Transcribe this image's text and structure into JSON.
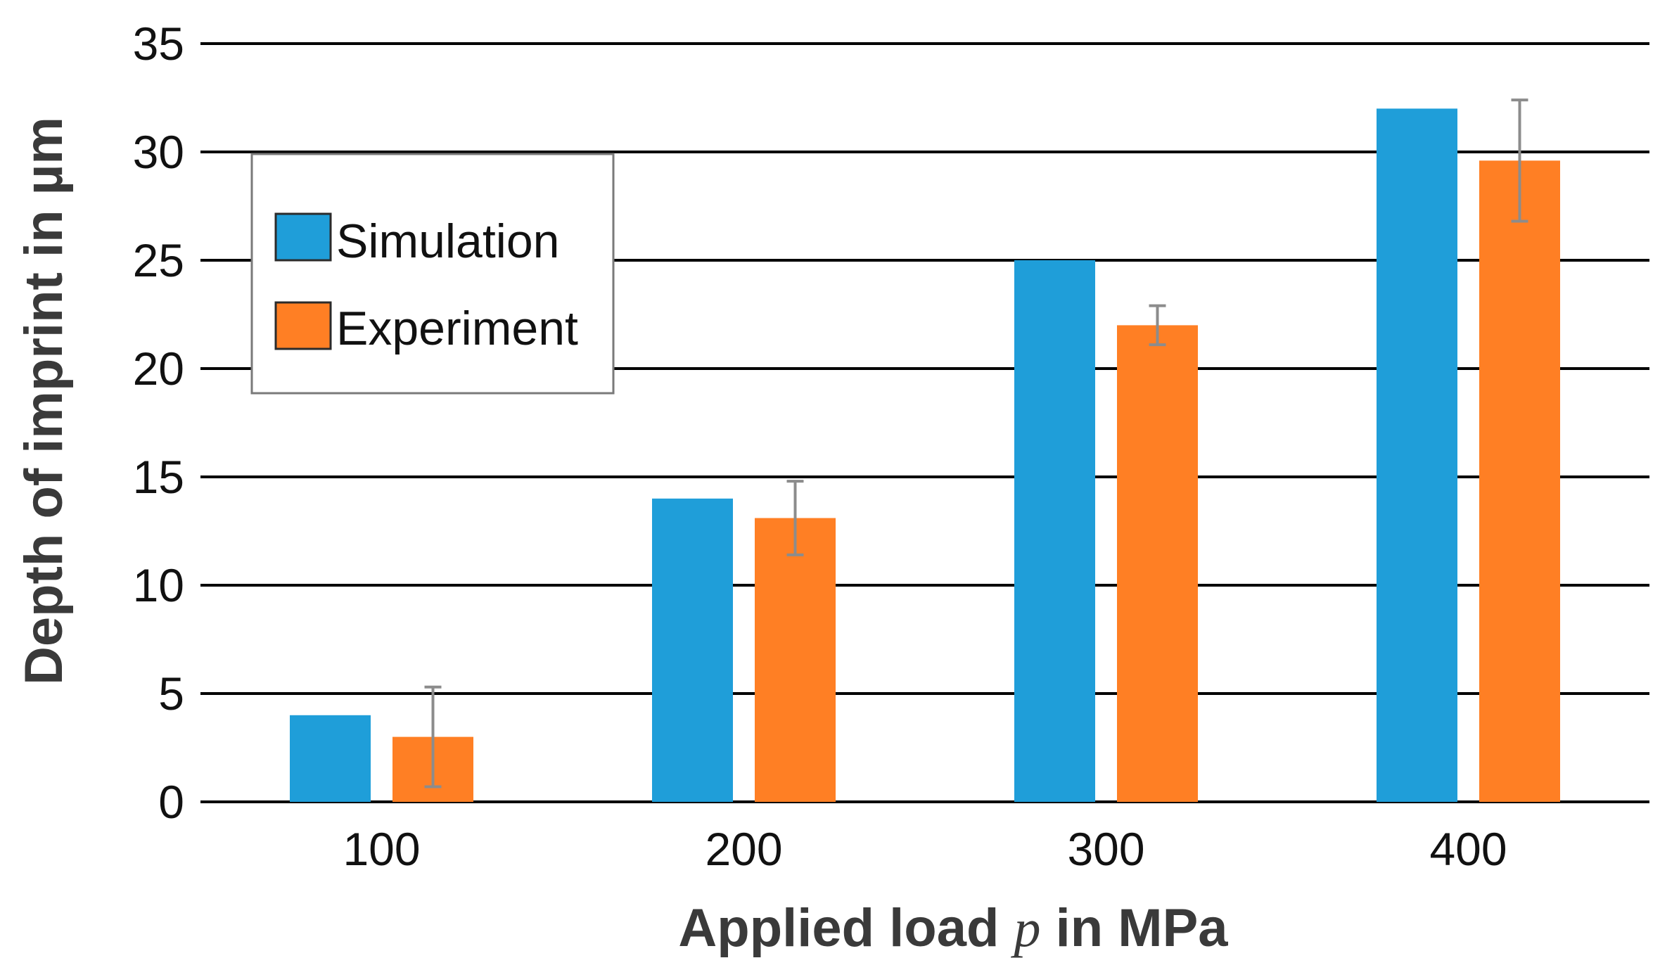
{
  "chart_data": {
    "type": "bar",
    "title": "",
    "categories": [
      "100",
      "200",
      "300",
      "400"
    ],
    "series": [
      {
        "name": "Simulation",
        "color": "#1F9ED9",
        "values": [
          4,
          14,
          25,
          32
        ]
      },
      {
        "name": "Experiment",
        "color": "#FF7F24",
        "values": [
          3,
          13.1,
          22,
          29.6
        ],
        "error": [
          2.3,
          1.7,
          0.9,
          2.8
        ]
      }
    ],
    "ylim": [
      0,
      35
    ],
    "yticks": [
      0,
      5,
      10,
      15,
      20,
      25,
      30,
      35
    ],
    "grid": true,
    "legend_position": "upper-left",
    "xlabel_prefix": "Applied load ",
    "xlabel_variable": "p",
    "xlabel_suffix": " in MPa",
    "ylabel": "Depth of imprint in µm",
    "error_bar_color": "#8C8C8C",
    "grid_color": "#000000"
  }
}
